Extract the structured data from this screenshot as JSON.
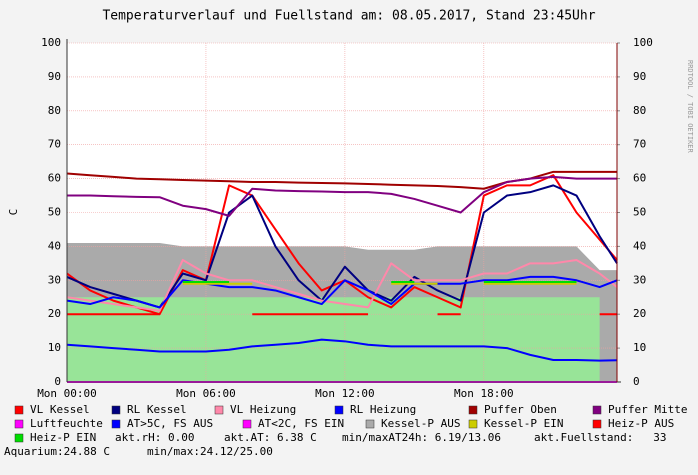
{
  "chart_data": {
    "type": "line",
    "title": "Temperaturverlauf und Fuellstand am: 08.05.2017, Stand 23:45Uhr",
    "y_label": "C",
    "side_text": "RRDTOOL / TOBI OETIKER",
    "x": [
      0,
      1,
      2,
      3,
      4,
      5,
      6,
      7,
      8,
      9,
      10,
      11,
      12,
      13,
      14,
      15,
      16,
      17,
      18,
      19,
      20,
      21,
      22,
      23,
      23.75
    ],
    "xlim": [
      0,
      23.75
    ],
    "xticks": [
      {
        "value": 0,
        "label": "Mon 00:00"
      },
      {
        "value": 6,
        "label": "Mon 06:00"
      },
      {
        "value": 12,
        "label": "Mon 12:00"
      },
      {
        "value": 18,
        "label": "Mon 18:00"
      }
    ],
    "ylim": [
      0,
      100
    ],
    "yticks": [
      0,
      10,
      20,
      30,
      40,
      50,
      60,
      70,
      80,
      90,
      100
    ],
    "y2lim": [
      0,
      100
    ],
    "y2ticks": [
      0,
      10,
      20,
      30,
      40,
      50,
      60,
      70,
      80,
      90,
      100
    ],
    "grid": true,
    "fill_area": {
      "color": "#98e498",
      "values": [
        25,
        25,
        25,
        25,
        25,
        25,
        25,
        25,
        25,
        25,
        25,
        25,
        25,
        25,
        25,
        25,
        25,
        25,
        25,
        25,
        25,
        25,
        25,
        25,
        null
      ]
    },
    "series": [
      {
        "name": "VL Kessel",
        "color": "#ff0000",
        "style": "line",
        "values": [
          32,
          27,
          24,
          22,
          20,
          33,
          30,
          58,
          55,
          45,
          35,
          27,
          30,
          25,
          22,
          28,
          25,
          22,
          55,
          58,
          58,
          61,
          50,
          42,
          36
        ]
      },
      {
        "name": "RL Kessel",
        "color": "#000080",
        "style": "line",
        "values": [
          31,
          28,
          26,
          24,
          22,
          32,
          30,
          50,
          55,
          40,
          30,
          24,
          34,
          27,
          24,
          31,
          27,
          24,
          50,
          55,
          56,
          58,
          55,
          43,
          35
        ]
      },
      {
        "name": "VL Heizung",
        "color": "#ff88aa",
        "style": "line",
        "values": [
          25,
          24,
          23,
          22,
          21,
          36,
          32,
          30,
          30,
          28,
          26,
          24,
          23,
          22,
          35,
          30,
          30,
          30,
          32,
          32,
          35,
          35,
          36,
          32,
          28
        ]
      },
      {
        "name": "RL Heizung",
        "color": "#0000ff",
        "style": "line",
        "values": [
          24,
          23,
          25,
          24,
          22,
          30,
          29,
          28,
          28,
          27,
          25,
          23,
          30,
          27,
          23,
          29,
          29,
          29,
          30,
          30,
          31,
          31,
          30,
          28,
          30
        ]
      },
      {
        "name": "Puffer Oben",
        "color": "#a00000",
        "style": "line",
        "values": [
          61.5,
          61,
          60.5,
          60,
          59.8,
          59.6,
          59.4,
          59.2,
          59,
          59,
          58.8,
          58.7,
          58.6,
          58.4,
          58.2,
          58,
          57.8,
          57.5,
          57,
          59,
          60,
          62,
          62,
          62,
          62
        ]
      },
      {
        "name": "Puffer Mitte",
        "color": "#800080",
        "style": "line",
        "values": [
          55,
          55,
          54.8,
          54.6,
          54.5,
          52,
          51,
          49,
          57,
          56.5,
          56.3,
          56.2,
          56,
          56,
          55.5,
          54,
          52,
          50,
          56,
          59,
          60,
          60.5,
          60,
          60,
          60
        ]
      },
      {
        "name": "Luftfeuchte",
        "color": "#ff00ff",
        "style": "line",
        "values": [
          0,
          0,
          0,
          0,
          0,
          0,
          0,
          0,
          0,
          0,
          0,
          0,
          0,
          0,
          0,
          0,
          0,
          0,
          0,
          0,
          0,
          0,
          0,
          0,
          0
        ]
      },
      {
        "name": "AT>5C, FS AUS",
        "color": "#0000ff",
        "style": "line",
        "values": [
          11,
          10.5,
          10,
          9.5,
          9,
          9,
          9,
          9.5,
          10.5,
          11,
          11.5,
          12.5,
          12,
          11,
          10.5,
          10.5,
          10.5,
          10.5,
          10.5,
          10,
          8,
          6.5,
          6.5,
          6.3,
          6.4
        ]
      },
      {
        "name": "AT<2C, FS EIN",
        "color": "#ff00ff",
        "style": "line",
        "values": [
          null,
          null,
          null,
          null,
          null,
          null,
          null,
          null,
          null,
          null,
          null,
          null,
          null,
          null,
          null,
          null,
          null,
          null,
          null,
          null,
          null,
          null,
          null,
          null,
          null
        ]
      },
      {
        "name": "Kessel-P AUS",
        "color": "#aaaaaa",
        "style": "area",
        "values": [
          41,
          41,
          41,
          41,
          41,
          40,
          40,
          40,
          40,
          40,
          40,
          40,
          40,
          39,
          39,
          39,
          40,
          40,
          40,
          40,
          40,
          40,
          40,
          33,
          33
        ]
      },
      {
        "name": "Kessel-P EIN",
        "color": "#cccc00",
        "style": "line",
        "values": [
          null,
          null,
          null,
          null,
          null,
          29,
          29,
          29,
          29,
          null,
          null,
          null,
          null,
          null,
          29,
          29,
          29,
          null,
          29,
          29,
          29,
          29,
          29,
          null,
          null
        ]
      },
      {
        "name": "Heiz-P AUS",
        "color": "#ff0000",
        "style": "line",
        "values": [
          20,
          20,
          20,
          20,
          20,
          null,
          null,
          null,
          20,
          20,
          20,
          20,
          20,
          20,
          null,
          null,
          20,
          20,
          null,
          null,
          null,
          null,
          null,
          20,
          20
        ]
      },
      {
        "name": "Heiz-P EIN",
        "color": "#00dd00",
        "style": "line",
        "values": [
          null,
          null,
          null,
          null,
          null,
          29.5,
          29.5,
          29.5,
          null,
          null,
          null,
          null,
          null,
          null,
          29.5,
          29.5,
          null,
          null,
          29.5,
          29.5,
          29.5,
          29.5,
          29.5,
          null,
          null
        ]
      }
    ],
    "info": [
      "akt.rH: 0.00",
      "akt.AT: 6.38 C",
      "min/maxAT24h: 6.19/13.06",
      "akt.Fuellstand:   33",
      "Aquarium:24.88 C",
      "min/max:24.12/25.00"
    ]
  }
}
